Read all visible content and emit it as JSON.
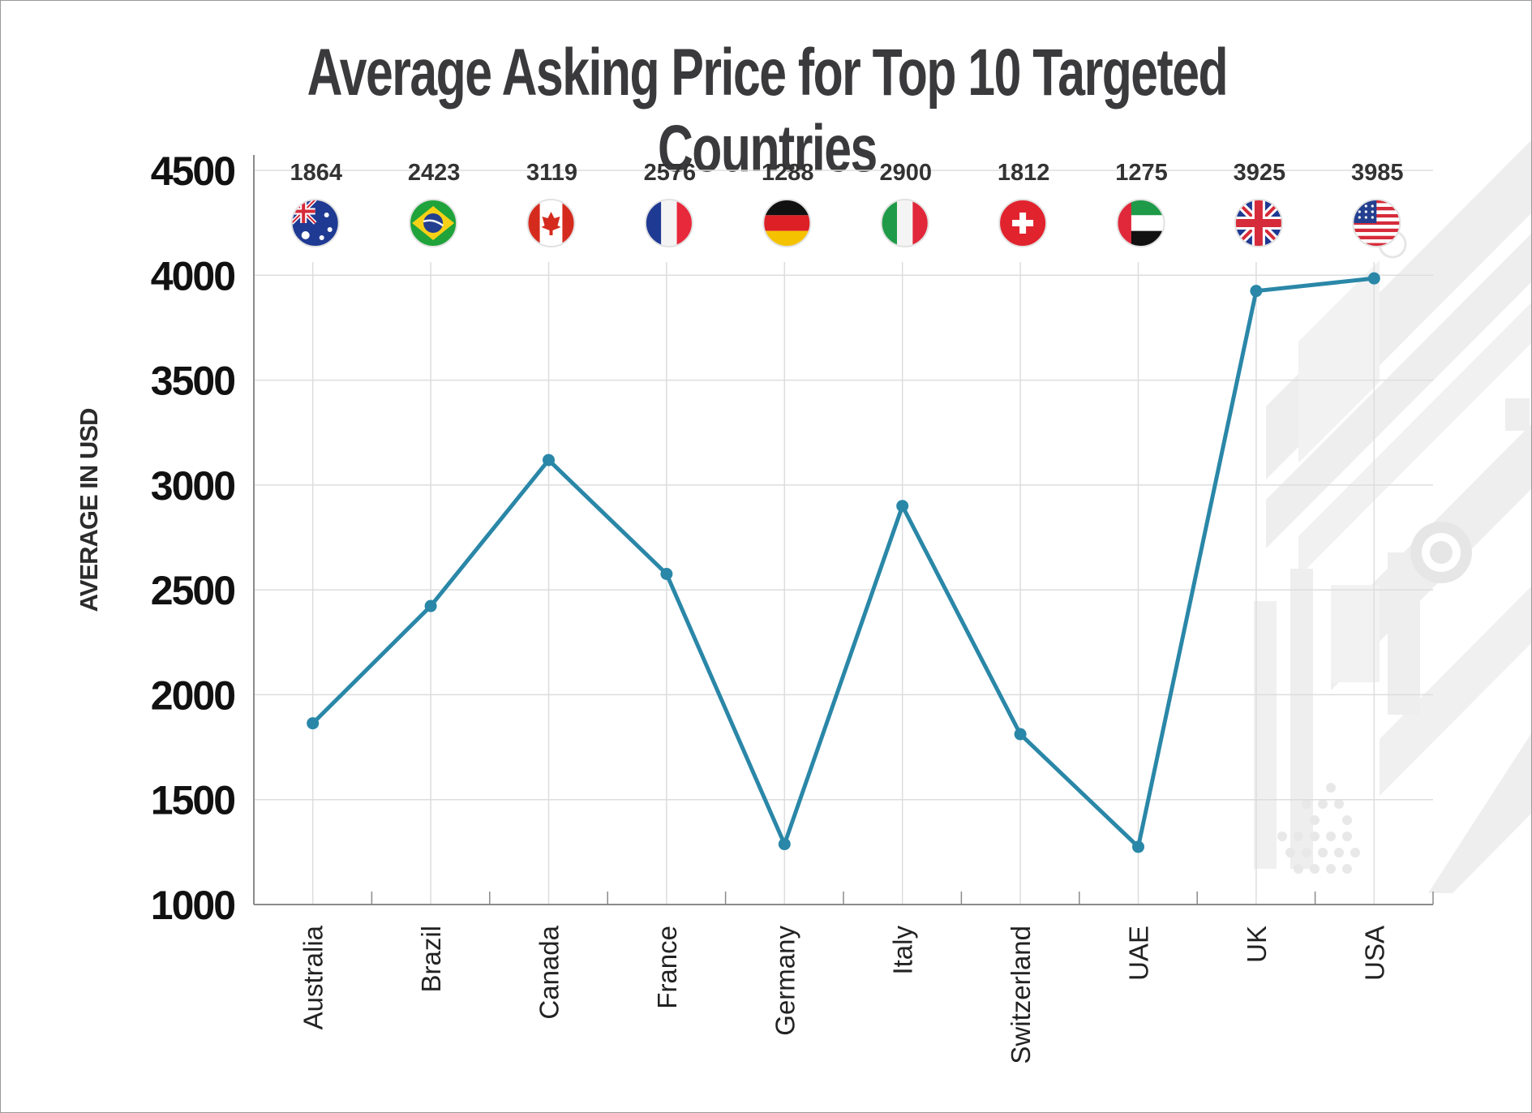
{
  "chart_data": {
    "type": "line",
    "title": "Average Asking Price for Top 10 Targeted Countries",
    "ylabel": "AVERAGE IN USD",
    "xlabel": "",
    "categories": [
      "Australia",
      "Brazil",
      "Canada",
      "France",
      "Germany",
      "Italy",
      "Switzerland",
      "UAE",
      "UK",
      "USA"
    ],
    "values": [
      1864,
      2423,
      3119,
      2576,
      1288,
      2900,
      1812,
      1275,
      3925,
      3985
    ],
    "data_labels": [
      "1864",
      "2423",
      "3119",
      "2576",
      "1288",
      "2900",
      "1812",
      "1275",
      "3925",
      "3985"
    ],
    "ylim": [
      1000,
      4500
    ],
    "yticks": [
      "1000",
      "1500",
      "2000",
      "2500",
      "3000",
      "3500",
      "4000",
      "4500"
    ],
    "grid": true,
    "flags": [
      "australia-flag-icon",
      "brazil-flag-icon",
      "canada-flag-icon",
      "france-flag-icon",
      "germany-flag-icon",
      "italy-flag-icon",
      "switzerland-flag-icon",
      "uae-flag-icon",
      "uk-flag-icon",
      "usa-flag-icon"
    ],
    "colors": {
      "line": "#2a87a8",
      "grid": "#dddddd",
      "axis": "#8a8a8a",
      "decoration": "#e9e9e9"
    }
  }
}
